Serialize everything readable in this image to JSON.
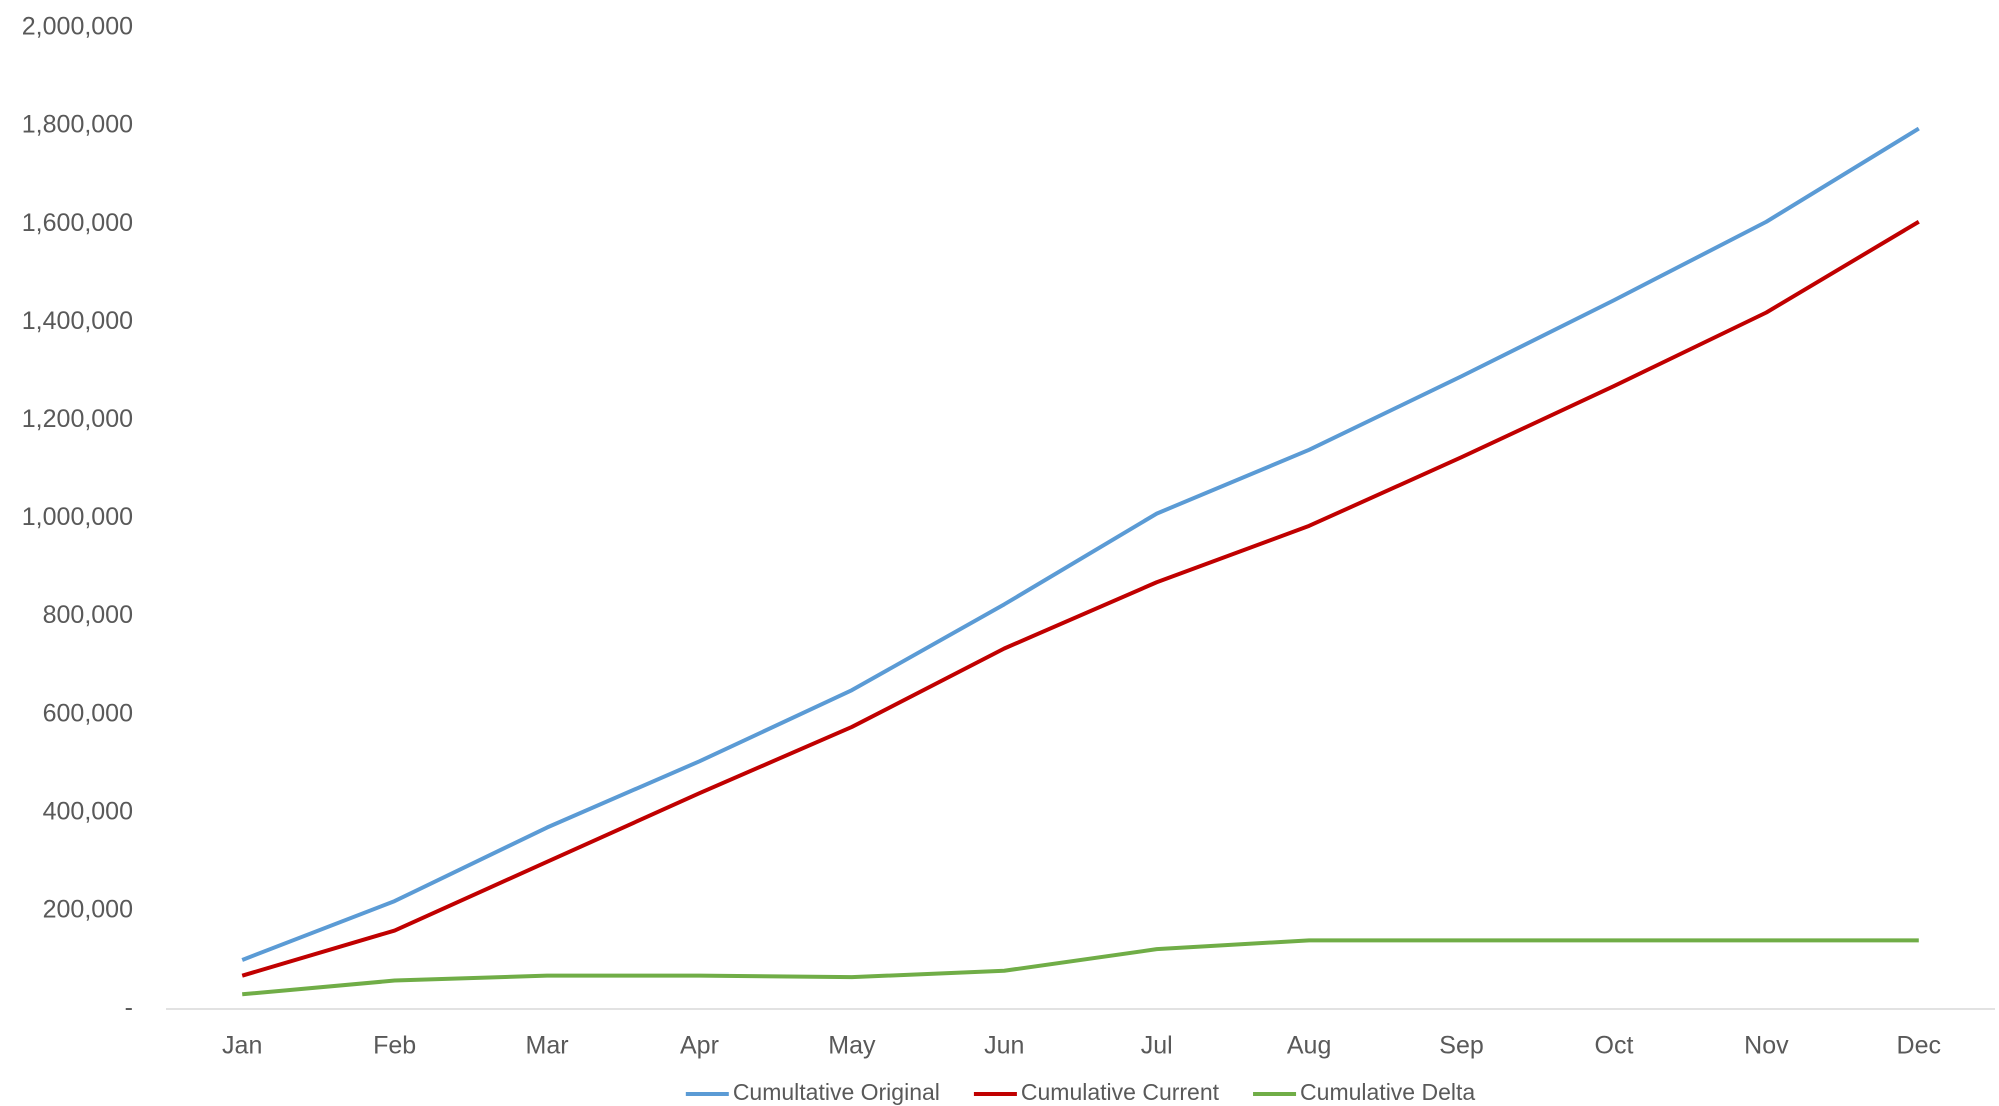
{
  "chart_data": {
    "type": "line",
    "categories": [
      "Jan",
      "Feb",
      "Mar",
      "Apr",
      "May",
      "Jun",
      "Jul",
      "Aug",
      "Sep",
      "Oct",
      "Nov",
      "Dec"
    ],
    "series": [
      {
        "name": "Cumultative Original",
        "color": "#5b9bd5",
        "values": [
          100000,
          220000,
          370000,
          505000,
          650000,
          825000,
          1010000,
          1140000,
          1290000,
          1445000,
          1605000,
          1795000
        ]
      },
      {
        "name": "Cumulative Current",
        "color": "#c00000",
        "values": [
          68000,
          160000,
          300000,
          440000,
          575000,
          735000,
          870000,
          985000,
          1125000,
          1270000,
          1420000,
          1605000
        ]
      },
      {
        "name": "Cumulative Delta",
        "color": "#70ad47",
        "values": [
          30000,
          58000,
          68000,
          68000,
          65000,
          78000,
          122000,
          140000,
          140000,
          140000,
          140000,
          140000
        ]
      }
    ],
    "ylim": [
      0,
      2000000
    ],
    "yticks": [
      {
        "value": 0,
        "label": "-"
      },
      {
        "value": 200000,
        "label": "200,000"
      },
      {
        "value": 400000,
        "label": "400,000"
      },
      {
        "value": 600000,
        "label": "600,000"
      },
      {
        "value": 800000,
        "label": "800,000"
      },
      {
        "value": 1000000,
        "label": "1,000,000"
      },
      {
        "value": 1200000,
        "label": "1,200,000"
      },
      {
        "value": 1400000,
        "label": "1,400,000"
      },
      {
        "value": 1600000,
        "label": "1,600,000"
      },
      {
        "value": 1800000,
        "label": "1,800,000"
      },
      {
        "value": 2000000,
        "label": "2,000,000"
      }
    ],
    "grid": false,
    "legend": "bottom"
  }
}
